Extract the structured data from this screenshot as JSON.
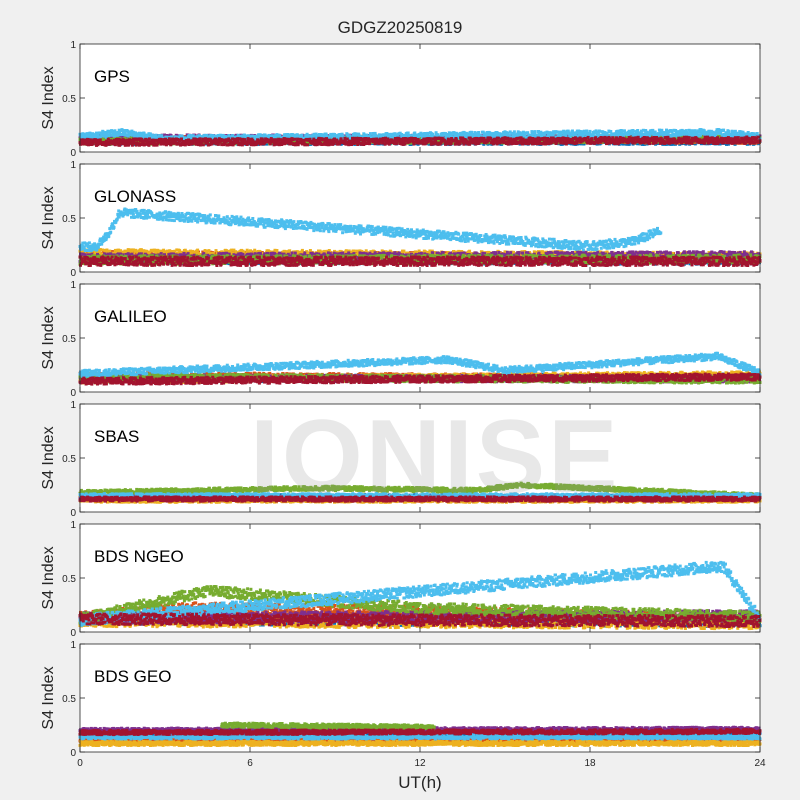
{
  "title": "GDGZ20250819",
  "watermark": "IONISE",
  "colors": {
    "background": "#f0f0f0",
    "axes_bg": "#ffffff",
    "axis_line": "#262626",
    "text": "#262626",
    "watermark": "#aaaaaa",
    "series": [
      "#0072BD",
      "#D95319",
      "#EDB120",
      "#7E2F8E",
      "#77AC30",
      "#4DBEEE",
      "#A2142F"
    ]
  },
  "chart_data": {
    "type": "scatter",
    "xlabel": "UT(h)",
    "ylabel": "S4 Index",
    "xlim": [
      0,
      24
    ],
    "ylim": [
      0,
      1
    ],
    "xticks": [
      "0",
      "6",
      "12",
      "18",
      "24"
    ],
    "yticks": [
      "0",
      "0.5",
      "1"
    ],
    "grid": false,
    "panels": [
      {
        "name": "GPS",
        "baseline": [
          0.1,
          0.14
        ],
        "noise": 0.03,
        "series": [
          {
            "x": [
              0,
              24
            ],
            "y": [
              0.1,
              0.1
            ]
          },
          {
            "x": [
              0,
              24
            ],
            "y": [
              0.12,
              0.11
            ]
          },
          {
            "x": [
              0,
              24
            ],
            "y": [
              0.11,
              0.13
            ]
          },
          {
            "x": [
              0,
              24
            ],
            "y": [
              0.13,
              0.12
            ]
          },
          {
            "x": [
              0,
              24
            ],
            "y": [
              0.1,
              0.12
            ]
          },
          {
            "x": [
              0,
              1.5,
              3,
              22.5,
              24
            ],
            "y": [
              0.14,
              0.18,
              0.12,
              0.18,
              0.14
            ]
          },
          {
            "x": [
              0,
              24
            ],
            "y": [
              0.09,
              0.11
            ]
          }
        ]
      },
      {
        "name": "GLONASS",
        "baseline": [
          0.09,
          0.2
        ],
        "noise": 0.04,
        "series": [
          {
            "x": [
              0,
              24
            ],
            "y": [
              0.12,
              0.11
            ]
          },
          {
            "x": [
              0,
              24
            ],
            "y": [
              0.15,
              0.13
            ]
          },
          {
            "x": [
              0,
              24
            ],
            "y": [
              0.17,
              0.14
            ]
          },
          {
            "x": [
              0,
              24
            ],
            "y": [
              0.13,
              0.15
            ]
          },
          {
            "x": [
              0,
              24
            ],
            "y": [
              0.11,
              0.12
            ]
          },
          {
            "x": [
              0,
              0.5,
              1.0,
              1.4,
              18.0,
              19.5,
              20.5
            ],
            "y": [
              0.25,
              0.22,
              0.35,
              0.55,
              0.24,
              0.28,
              0.38
            ]
          },
          {
            "x": [
              0,
              24
            ],
            "y": [
              0.1,
              0.1
            ]
          }
        ]
      },
      {
        "name": "GALILEO",
        "baseline": [
          0.08,
          0.2
        ],
        "noise": 0.03,
        "series": [
          {
            "x": [
              0,
              24
            ],
            "y": [
              0.12,
              0.14
            ]
          },
          {
            "x": [
              0,
              24
            ],
            "y": [
              0.15,
              0.13
            ]
          },
          {
            "x": [
              0,
              24
            ],
            "y": [
              0.11,
              0.16
            ]
          },
          {
            "x": [
              0,
              24
            ],
            "y": [
              0.13,
              0.12
            ]
          },
          {
            "x": [
              0,
              24
            ],
            "y": [
              0.14,
              0.11
            ]
          },
          {
            "x": [
              0,
              1,
              13,
              15,
              22.5,
              24
            ],
            "y": [
              0.17,
              0.18,
              0.3,
              0.2,
              0.33,
              0.18
            ]
          },
          {
            "x": [
              0,
              24
            ],
            "y": [
              0.1,
              0.14
            ]
          }
        ]
      },
      {
        "name": "SBAS",
        "baseline": [
          0.1,
          0.16
        ],
        "noise": 0.02,
        "series": [
          {
            "x": [
              0,
              24
            ],
            "y": [
              0.14,
              0.14
            ]
          },
          {
            "x": [
              0,
              24
            ],
            "y": [
              0.12,
              0.12
            ]
          },
          {
            "x": [
              0,
              24
            ],
            "y": [
              0.11,
              0.11
            ]
          },
          {
            "x": [
              0,
              24
            ],
            "y": [
              0.13,
              0.13
            ]
          },
          {
            "x": [
              0,
              8.5,
              14,
              15.5,
              24
            ],
            "y": [
              0.18,
              0.22,
              0.2,
              0.25,
              0.15
            ]
          },
          {
            "x": [
              0,
              24
            ],
            "y": [
              0.15,
              0.15
            ]
          },
          {
            "x": [
              0,
              24
            ],
            "y": [
              0.12,
              0.12
            ]
          }
        ]
      },
      {
        "name": "BDS NGEO",
        "baseline": [
          0.08,
          0.25
        ],
        "noise": 0.05,
        "series": [
          {
            "x": [
              0,
              24
            ],
            "y": [
              0.12,
              0.1
            ]
          },
          {
            "x": [
              0,
              4,
              10,
              24
            ],
            "y": [
              0.14,
              0.22,
              0.2,
              0.12
            ]
          },
          {
            "x": [
              0,
              24
            ],
            "y": [
              0.1,
              0.08
            ]
          },
          {
            "x": [
              0,
              24
            ],
            "y": [
              0.13,
              0.15
            ]
          },
          {
            "x": [
              0,
              4.5,
              12,
              24
            ],
            "y": [
              0.12,
              0.38,
              0.22,
              0.14
            ]
          },
          {
            "x": [
              0,
              22.7,
              24
            ],
            "y": [
              0.11,
              0.61,
              0.13
            ]
          },
          {
            "x": [
              0,
              24
            ],
            "y": [
              0.12,
              0.1
            ]
          }
        ]
      },
      {
        "name": "BDS GEO",
        "baseline": [
          0.06,
          0.25
        ],
        "noise": 0.02,
        "series": [
          {
            "x": [
              0,
              24
            ],
            "y": [
              0.16,
              0.17
            ]
          },
          {
            "x": [
              0,
              24
            ],
            "y": [
              0.11,
              0.11
            ]
          },
          {
            "x": [
              0,
              24
            ],
            "y": [
              0.08,
              0.08
            ]
          },
          {
            "x": [
              0,
              24
            ],
            "y": [
              0.2,
              0.21
            ]
          },
          {
            "x": [
              5,
              12.5
            ],
            "y": [
              0.25,
              0.23
            ]
          },
          {
            "x": [
              0,
              24
            ],
            "y": [
              0.14,
              0.14
            ]
          },
          {
            "x": [
              0,
              24
            ],
            "y": [
              0.18,
              0.19
            ]
          }
        ]
      }
    ]
  }
}
